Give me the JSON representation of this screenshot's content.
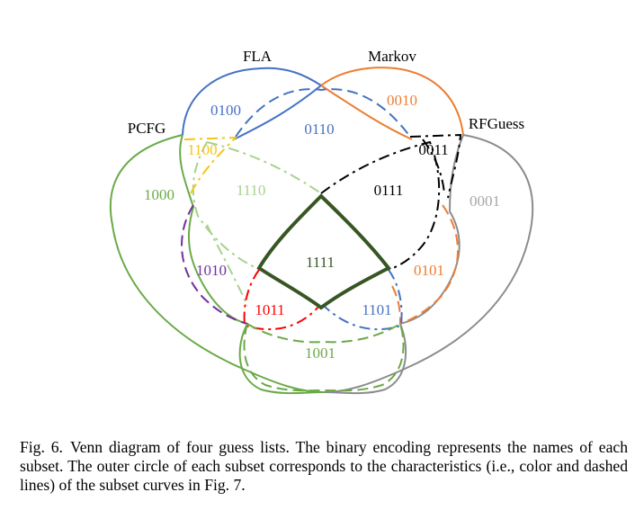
{
  "sets": [
    {
      "key": "pcfg",
      "name": "PCFG",
      "color": "#6aaa47"
    },
    {
      "key": "fla",
      "name": "FLA",
      "color": "#4472c4"
    },
    {
      "key": "markov",
      "name": "Markov",
      "color": "#ed7d31"
    },
    {
      "key": "rfguess",
      "name": "RFGuess",
      "color": "#8c8c8c"
    }
  ],
  "regions": [
    {
      "key": "r0100",
      "label": "0100",
      "color": "#4472c4"
    },
    {
      "key": "r0010",
      "label": "0010",
      "color": "#ed7d31"
    },
    {
      "key": "r0110",
      "label": "0110",
      "color": "#4472c4"
    },
    {
      "key": "r1100",
      "label": "1100",
      "color": "#f5c518"
    },
    {
      "key": "r0011",
      "label": "0011",
      "color": "#000000"
    },
    {
      "key": "r1000",
      "label": "1000",
      "color": "#6aaa47"
    },
    {
      "key": "r1110",
      "label": "1110",
      "color": "#a9d18e"
    },
    {
      "key": "r0111",
      "label": "0111",
      "color": "#000000"
    },
    {
      "key": "r0001",
      "label": "0001",
      "color": "#a6a6a6"
    },
    {
      "key": "r1111",
      "label": "1111",
      "color": "#375623"
    },
    {
      "key": "r1010",
      "label": "1010",
      "color": "#7030a0"
    },
    {
      "key": "r0101",
      "label": "0101",
      "color": "#ed7d31"
    },
    {
      "key": "r1011",
      "label": "1011",
      "color": "#ff0000"
    },
    {
      "key": "r1101",
      "label": "1101",
      "color": "#4472c4"
    },
    {
      "key": "r1001",
      "label": "1001",
      "color": "#6aaa47"
    }
  ],
  "caption": {
    "figure": "Fig. 6.",
    "text": "Venn diagram of four guess lists. The binary encoding represents the names of each subset. The outer circle of each subset corresponds to the characteristics (i.e., color and dashed lines) of the subset curves in Fig. 7."
  }
}
